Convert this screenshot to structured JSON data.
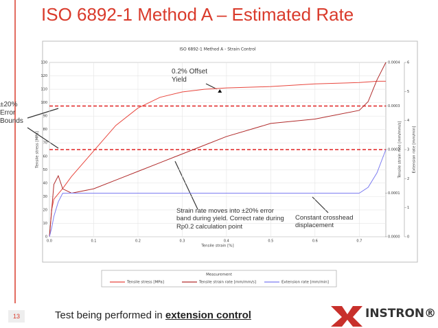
{
  "slide": {
    "title": "ISO 6892-1 Method A – Estimated Rate",
    "number": "13",
    "footer": {
      "text": "Test being performed in ",
      "emphasis": "extension control"
    },
    "logo": "INSTRON®"
  },
  "chart_data": {
    "type": "line",
    "title": "ISO 6892-1 Method A - Strain Control",
    "x_label": "Tensile strain [%]",
    "y_label": "Tensile stress [MPa]",
    "y2_label": "Tensile strain rate [mm/mm/s]",
    "y3_label": "Extension rate [mm/min]",
    "legend_title": "Measurement",
    "legend": "bottom",
    "grid": true,
    "x": [
      0,
      0.005,
      0.01,
      0.02,
      0.03,
      0.05,
      0.1,
      0.15,
      0.2,
      0.25,
      0.3,
      0.35,
      0.4,
      0.5,
      0.6,
      0.7,
      0.72,
      0.74,
      0.76
    ],
    "series": [
      {
        "name": "Tensile stress [MPa]",
        "color": "#e8453c",
        "values": [
          0,
          20,
          28,
          32,
          36,
          45,
          64,
          83,
          96,
          104,
          108,
          110,
          111,
          112,
          114,
          115,
          115.5,
          116,
          116
        ]
      },
      {
        "name": "Tensile strain rate [mm/mm/s]",
        "color": "#b02a2a",
        "axis": "y2",
        "values": [
          0,
          6e-05,
          0.00012,
          0.00014,
          0.00011,
          0.0001,
          0.00011,
          0.00013,
          0.00015,
          0.00017,
          0.00019,
          0.00021,
          0.00023,
          0.00026,
          0.00027,
          0.00029,
          0.00031,
          0.00036,
          0.0004
        ]
      },
      {
        "name": "Extension rate [mm/min]",
        "color": "#7b7bf0",
        "axis": "y3",
        "values": [
          0,
          0.3,
          0.7,
          1.2,
          1.5,
          1.5,
          1.5,
          1.5,
          1.5,
          1.5,
          1.5,
          1.5,
          1.5,
          1.5,
          1.5,
          1.5,
          1.7,
          2.2,
          3
        ]
      }
    ],
    "xlim": [
      0,
      0.76
    ],
    "xticks": [
      {
        "value": 0,
        "label": "0.0"
      },
      0.1,
      0.2,
      0.3,
      0.4,
      0.5,
      0.6,
      0.7
    ],
    "ylim": [
      0,
      130
    ],
    "yticks": [
      0,
      10,
      20,
      30,
      40,
      50,
      60,
      70,
      80,
      90,
      100,
      110,
      120,
      130
    ],
    "y2lim": [
      0,
      0.0004
    ],
    "y2ticks": [
      {
        "value": 0,
        "label": "0.0000"
      },
      0.0001,
      0.0002,
      0.0003,
      0.0004
    ],
    "y3lim": [
      0,
      6
    ],
    "y3ticks": [
      0,
      1,
      2,
      3,
      4,
      5,
      6
    ],
    "reference_lines": {
      "axis": "y2",
      "color": "#e02020",
      "values": [
        0.0003,
        0.0002
      ]
    },
    "yield_point": {
      "x": 0.385,
      "y": 108.5
    },
    "annotations": [
      "0.2% Offset Yield",
      "±20% Error Bounds",
      "Strain rate moves into ±20% error band during yield. Correct rate during Rp0.2 calculation point",
      "Constant crosshead displacement"
    ]
  }
}
